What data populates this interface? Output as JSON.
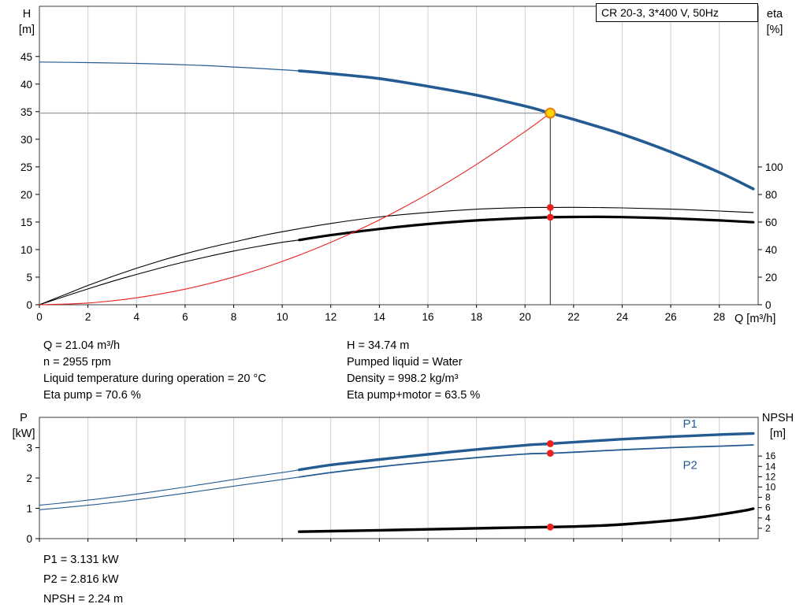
{
  "title_box": "CR 20-3, 3*400 V, 50Hz",
  "info_top": {
    "left": [
      "Q = 21.04 m³/h",
      "n = 2955 rpm",
      "Liquid temperature during operation = 20 °C",
      "Eta pump = 70.6 %"
    ],
    "right": [
      "H = 34.74 m",
      "Pumped liquid = Water",
      "Density = 998.2 kg/m³",
      "Eta pump+motor = 63.5 %"
    ]
  },
  "info_bottom": [
    "P1 = 3.131 kW",
    "P2 = 2.816 kW",
    "NPSH = 2.24 m"
  ],
  "duty_point": {
    "Q_m3h": 21.04,
    "H_m": 34.74,
    "eta_pump_pct": 70.6,
    "eta_pump_motor_pct": 63.5,
    "P1_kW": 3.131,
    "P2_kW": 2.816,
    "NPSH_m": 2.24,
    "n_rpm": 2955
  },
  "colors": {
    "curve_blue": "#235b92",
    "curve_black": "#000000",
    "curve_red": "#e8231f",
    "duty_marker_fill": "#ffd400",
    "duty_marker_ring": "#e87f16",
    "grid": "#cfcfcf"
  },
  "chart_data": [
    {
      "name": "qh-eta-chart",
      "type": "line",
      "title": "CR 20-3, 3*400 V, 50Hz",
      "x_axis_label": "Q [m³/h]",
      "x_range": [
        0,
        29.6
      ],
      "x_ticks": [
        0,
        2,
        4,
        6,
        8,
        10,
        12,
        14,
        16,
        18,
        20,
        22,
        24,
        26,
        28
      ],
      "show_x_tick_labels": true,
      "grid": "vertical",
      "axes": {
        "left": {
          "title": "H",
          "unit": "[m]",
          "range": [
            0,
            54.1
          ],
          "ticks": [
            0,
            5,
            10,
            15,
            20,
            25,
            30,
            35,
            40,
            45
          ]
        },
        "right": {
          "title": "eta",
          "unit": "[%]",
          "range": [
            0,
            216.6
          ],
          "ticks": [
            0,
            20,
            40,
            60,
            80,
            100
          ]
        }
      },
      "series": [
        {
          "name": "h-curve-thin",
          "axis": "left",
          "color": "#235b92",
          "width": 1.2,
          "points": [
            [
              0,
              44.0
            ],
            [
              2,
              43.9
            ],
            [
              4,
              43.75
            ],
            [
              6,
              43.5
            ],
            [
              8,
              43.1
            ],
            [
              10,
              42.6
            ],
            [
              10.7,
              42.4
            ]
          ]
        },
        {
          "name": "h-curve",
          "axis": "left",
          "color": "#235b92",
          "width": 3.6,
          "points": [
            [
              10.7,
              42.4
            ],
            [
              12,
              41.9
            ],
            [
              14,
              41.0
            ],
            [
              16,
              39.6
            ],
            [
              18,
              38.0
            ],
            [
              20,
              36.0
            ],
            [
              21.04,
              34.74
            ],
            [
              22,
              33.6
            ],
            [
              24,
              30.9
            ],
            [
              26,
              27.7
            ],
            [
              28,
              24.0
            ],
            [
              29.4,
              21.0
            ]
          ]
        },
        {
          "name": "eta-pump-curve",
          "axis": "right",
          "color": "#000000",
          "width": 1.1,
          "points": [
            [
              0,
              0
            ],
            [
              1,
              7
            ],
            [
              2,
              14
            ],
            [
              3,
              20.5
            ],
            [
              4,
              26.5
            ],
            [
              5,
              32
            ],
            [
              6,
              37
            ],
            [
              7,
              41.5
            ],
            [
              8,
              45.5
            ],
            [
              9,
              49.5
            ],
            [
              10,
              53
            ],
            [
              12,
              59
            ],
            [
              14,
              63.7
            ],
            [
              16,
              67
            ],
            [
              18,
              69.3
            ],
            [
              20,
              70.5
            ],
            [
              21.04,
              70.6
            ],
            [
              22,
              70.7
            ],
            [
              24,
              70.3
            ],
            [
              26,
              69.4
            ],
            [
              28,
              68.0
            ],
            [
              29.4,
              66.9
            ]
          ]
        },
        {
          "name": "eta-pump-motor-thin",
          "axis": "right",
          "color": "#000000",
          "width": 1.1,
          "points": [
            [
              0,
              0
            ],
            [
              1,
              5.8
            ],
            [
              2,
              11.5
            ],
            [
              3,
              17
            ],
            [
              4,
              22
            ],
            [
              5,
              26.8
            ],
            [
              6,
              31.2
            ],
            [
              7,
              35.2
            ],
            [
              8,
              39
            ],
            [
              9,
              42.3
            ],
            [
              10,
              45.3
            ],
            [
              10.7,
              47.0
            ]
          ]
        },
        {
          "name": "eta-pump-motor-curve",
          "axis": "right",
          "color": "#000000",
          "width": 3.2,
          "points": [
            [
              10.7,
              47.0
            ],
            [
              12,
              50.5
            ],
            [
              14,
              55.0
            ],
            [
              16,
              58.6
            ],
            [
              18,
              61.2
            ],
            [
              20,
              62.9
            ],
            [
              21.04,
              63.5
            ],
            [
              22,
              63.7
            ],
            [
              23,
              63.8
            ],
            [
              24,
              63.6
            ],
            [
              26,
              62.7
            ],
            [
              28,
              61.2
            ],
            [
              29.4,
              59.9
            ]
          ]
        },
        {
          "name": "system-curve",
          "axis": "left",
          "color": "#e8231f",
          "width": 1.1,
          "points": [
            [
              0,
              0
            ],
            [
              2,
              0.31
            ],
            [
              4,
              1.26
            ],
            [
              6,
              2.83
            ],
            [
              8,
              5.02
            ],
            [
              10,
              7.85
            ],
            [
              12,
              11.3
            ],
            [
              14,
              15.38
            ],
            [
              16,
              20.09
            ],
            [
              18,
              25.43
            ],
            [
              20,
              31.39
            ],
            [
              21.04,
              34.74
            ]
          ]
        }
      ],
      "guides": [
        {
          "type": "vline",
          "axis": "left",
          "q": 21.04,
          "from": 0,
          "to": 34.74,
          "color": "#1f1f1f",
          "width": 1
        },
        {
          "type": "hline",
          "axis": "left",
          "value": 34.74,
          "q_from": 0,
          "q_to": 21.04,
          "color": "#9a9a9a",
          "width": 1.2
        }
      ],
      "markers": [
        {
          "name": "duty-point-marker",
          "shape": "ring",
          "axis": "left",
          "q": 21.04,
          "value": 34.74,
          "r": 6,
          "fill": "#ffd400",
          "stroke": "#e87f16",
          "stroke_width": 2
        },
        {
          "name": "eta-pump-duty-dot",
          "shape": "dot",
          "axis": "right",
          "q": 21.04,
          "value": 70.6,
          "r": 4.4,
          "fill": "#e8231f"
        },
        {
          "name": "eta-pump-motor-duty-dot",
          "shape": "dot",
          "axis": "right",
          "q": 21.04,
          "value": 63.5,
          "r": 4.4,
          "fill": "#e8231f"
        }
      ],
      "annotations": []
    },
    {
      "name": "p-npsh-chart",
      "type": "line",
      "title": "",
      "x_axis_label": "",
      "x_range": [
        0,
        29.6
      ],
      "x_ticks": [
        0,
        2,
        4,
        6,
        8,
        10,
        12,
        14,
        16,
        18,
        20,
        22,
        24,
        26,
        28
      ],
      "show_x_tick_labels": false,
      "grid": "vertical",
      "axes": {
        "left": {
          "title": "P",
          "unit": "[kW]",
          "range": [
            0,
            4.0
          ],
          "ticks": [
            0,
            1,
            2,
            3
          ]
        },
        "right": {
          "title": "NPSH",
          "unit": "[m]",
          "range": [
            0,
            23.5
          ],
          "ticks": [
            2,
            4,
            6,
            8,
            10,
            12,
            14,
            16
          ]
        }
      },
      "series": [
        {
          "name": "p1-curve-thin",
          "axis": "left",
          "color": "#235b92",
          "width": 1.1,
          "points": [
            [
              0,
              1.1
            ],
            [
              2,
              1.27
            ],
            [
              4,
              1.47
            ],
            [
              6,
              1.7
            ],
            [
              8,
              1.95
            ],
            [
              10,
              2.18
            ],
            [
              10.7,
              2.27
            ]
          ]
        },
        {
          "name": "p1-curve",
          "axis": "left",
          "color": "#235b92",
          "width": 3.4,
          "points": [
            [
              10.7,
              2.27
            ],
            [
              12,
              2.43
            ],
            [
              14,
              2.61
            ],
            [
              16,
              2.78
            ],
            [
              18,
              2.94
            ],
            [
              20,
              3.08
            ],
            [
              21.04,
              3.131
            ],
            [
              22,
              3.18
            ],
            [
              24,
              3.28
            ],
            [
              26,
              3.36
            ],
            [
              28,
              3.43
            ],
            [
              29.4,
              3.47
            ]
          ]
        },
        {
          "name": "p2-curve-thin",
          "axis": "left",
          "color": "#235b92",
          "width": 1.1,
          "points": [
            [
              0,
              0.95
            ],
            [
              2,
              1.1
            ],
            [
              4,
              1.28
            ],
            [
              6,
              1.5
            ],
            [
              8,
              1.73
            ],
            [
              10,
              1.95
            ],
            [
              10.7,
              2.03
            ]
          ]
        },
        {
          "name": "p2-curve",
          "axis": "left",
          "color": "#235b92",
          "width": 1.8,
          "points": [
            [
              10.7,
              2.03
            ],
            [
              12,
              2.18
            ],
            [
              14,
              2.37
            ],
            [
              16,
              2.53
            ],
            [
              18,
              2.67
            ],
            [
              20,
              2.79
            ],
            [
              21.04,
              2.816
            ],
            [
              22,
              2.85
            ],
            [
              24,
              2.93
            ],
            [
              26,
              3.0
            ],
            [
              28,
              3.05
            ],
            [
              29.4,
              3.09
            ]
          ]
        },
        {
          "name": "npsh-curve",
          "axis": "right",
          "color": "#000000",
          "width": 3.4,
          "points": [
            [
              10.7,
              1.35
            ],
            [
              12,
              1.45
            ],
            [
              14,
              1.62
            ],
            [
              16,
              1.8
            ],
            [
              18,
              2.0
            ],
            [
              20,
              2.16
            ],
            [
              21.04,
              2.24
            ],
            [
              22,
              2.34
            ],
            [
              23,
              2.5
            ],
            [
              24,
              2.75
            ],
            [
              25,
              3.1
            ],
            [
              26,
              3.5
            ],
            [
              27,
              4.0
            ],
            [
              28,
              4.65
            ],
            [
              29,
              5.4
            ],
            [
              29.4,
              5.8
            ]
          ]
        }
      ],
      "guides": [],
      "markers": [
        {
          "name": "p1-duty-dot",
          "shape": "dot",
          "axis": "left",
          "q": 21.04,
          "value": 3.131,
          "r": 4.4,
          "fill": "#e8231f"
        },
        {
          "name": "p2-duty-dot",
          "shape": "dot",
          "axis": "left",
          "q": 21.04,
          "value": 2.816,
          "r": 4.4,
          "fill": "#e8231f"
        },
        {
          "name": "npsh-duty-dot",
          "shape": "dot",
          "axis": "right",
          "q": 21.04,
          "value": 2.24,
          "r": 4.4,
          "fill": "#e8231f"
        }
      ],
      "annotations": [
        {
          "name": "p1-label",
          "text": "P1",
          "axis": "left",
          "q": 26.5,
          "value": 3.66,
          "color": "#235b92",
          "size": 15
        },
        {
          "name": "p2-label",
          "text": "P2",
          "axis": "left",
          "q": 26.5,
          "value": 2.3,
          "color": "#235b92",
          "size": 15
        }
      ]
    }
  ]
}
